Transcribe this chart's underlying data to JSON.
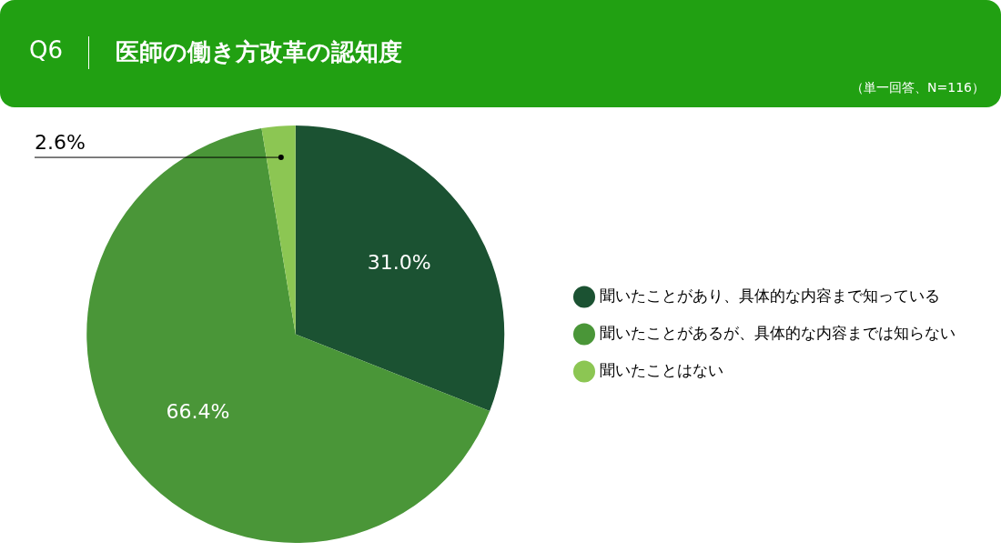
{
  "chart_data": {
    "type": "pie",
    "title": "医師の働き方改革の認知度",
    "subtitle": "（単一回答、N=116）",
    "annotations": [
      "Q6"
    ],
    "categories": [
      "聞いたことがあり、具体的な内容まで知っている",
      "聞いたことがあるが、具体的な内容までは知らない",
      "聞いたことはない"
    ],
    "values": [
      31.0,
      66.4,
      2.6
    ],
    "colors": [
      "#1b5232",
      "#4a9638",
      "#8cc653"
    ],
    "value_labels": [
      "31.0%",
      "66.4%",
      "2.6%"
    ],
    "legend": "right"
  }
}
